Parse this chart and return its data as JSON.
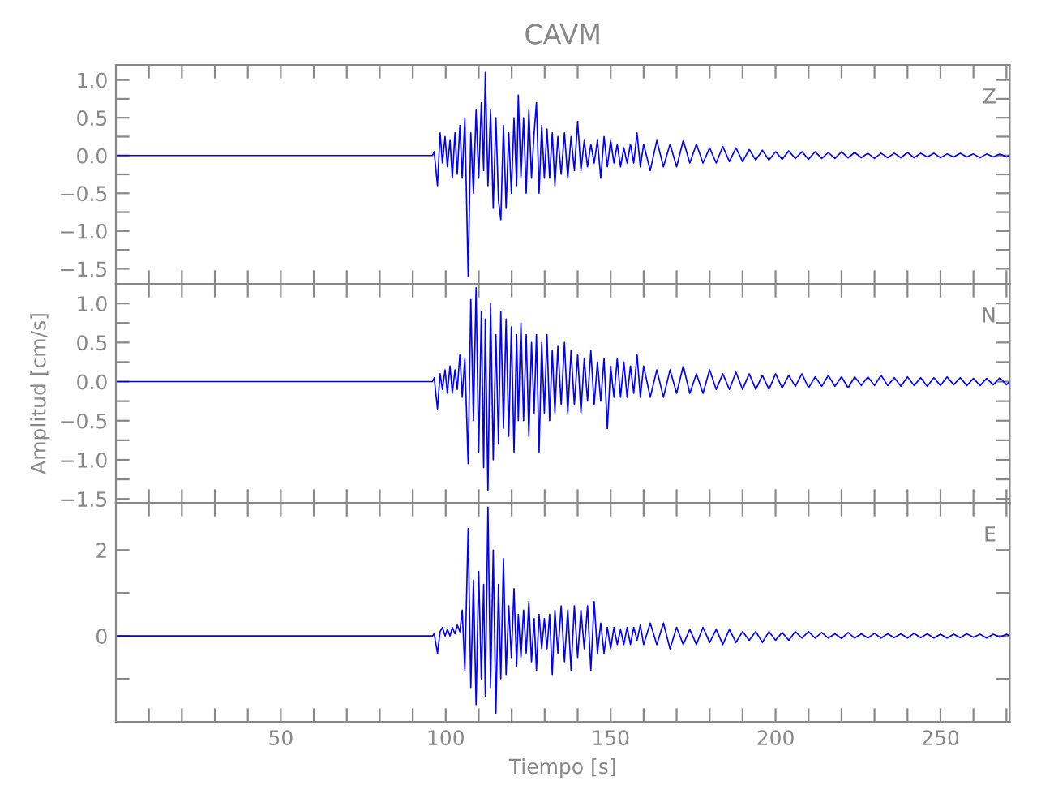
{
  "chart_data": [
    {
      "type": "line",
      "title": "CAVM",
      "annotations": [
        "Z"
      ],
      "tick_labels": "y",
      "grid": false,
      "legend": false,
      "x": [
        0,
        96,
        96.5,
        97.5,
        98.3,
        99,
        99.8,
        100.5,
        101.3,
        102,
        102.8,
        103.5,
        104.3,
        105,
        105.8,
        106.8,
        107.6,
        108.4,
        109.2,
        110,
        110.8,
        111.5,
        112,
        112.8,
        113.6,
        114.4,
        115.2,
        116,
        116.7,
        117.5,
        118.3,
        119.1,
        119.9,
        120.7,
        121.5,
        122,
        122.8,
        123.6,
        124.4,
        125.2,
        126,
        126.8,
        127.5,
        128.3,
        129.1,
        129.9,
        130.7,
        131.5,
        132.3,
        133.1,
        134,
        135,
        136,
        137,
        138,
        139,
        140,
        141,
        142,
        143,
        144,
        145,
        146,
        147,
        148,
        149,
        150,
        151,
        152,
        153,
        154,
        155,
        156,
        157,
        158,
        159,
        160,
        162,
        164,
        166,
        168,
        170,
        172,
        174,
        176,
        178,
        180,
        182,
        184,
        186,
        188,
        190,
        192,
        194,
        196,
        198,
        200,
        202,
        204,
        206,
        208,
        210,
        212,
        214,
        216,
        218,
        220,
        222,
        224,
        226,
        228,
        230,
        232,
        234,
        236,
        238,
        240,
        242,
        244,
        246,
        248,
        250,
        252,
        254,
        256,
        258,
        260,
        262,
        264,
        266,
        268,
        270,
        271
      ],
      "series": [
        {
          "color": "#0000ff",
          "values": [
            0,
            0,
            0.05,
            -0.4,
            0.3,
            -0.1,
            0.25,
            -0.15,
            0.2,
            -0.3,
            0.3,
            -0.25,
            0.4,
            -0.3,
            0.5,
            -1.6,
            0.3,
            -0.5,
            0.6,
            -0.3,
            0.7,
            -0.2,
            1.1,
            -0.4,
            0.6,
            -0.7,
            0.5,
            -0.6,
            -0.85,
            0.4,
            -0.7,
            0.3,
            -0.5,
            0.5,
            -0.4,
            0.8,
            -0.3,
            0.5,
            -0.5,
            0.6,
            -0.3,
            0.3,
            0.7,
            -0.5,
            0.4,
            -0.3,
            0.35,
            -0.3,
            0.3,
            -0.4,
            0.25,
            -0.25,
            0.3,
            -0.3,
            0.25,
            -0.2,
            0.45,
            -0.2,
            0.2,
            -0.15,
            0.15,
            -0.1,
            0.2,
            -0.3,
            0.25,
            -0.15,
            0.2,
            -0.1,
            0.15,
            -0.15,
            0.1,
            -0.1,
            0.15,
            -0.1,
            0.3,
            -0.15,
            0.15,
            -0.2,
            0.2,
            -0.15,
            0.15,
            -0.15,
            0.2,
            -0.1,
            0.15,
            -0.1,
            0.1,
            -0.1,
            0.12,
            -0.08,
            0.1,
            -0.08,
            0.08,
            -0.06,
            0.07,
            -0.06,
            0.05,
            -0.05,
            0.06,
            -0.04,
            0.05,
            -0.05,
            0.05,
            -0.04,
            0.04,
            -0.04,
            0.05,
            -0.03,
            0.04,
            -0.03,
            0.03,
            -0.04,
            0.03,
            -0.03,
            0.03,
            -0.03,
            0.04,
            -0.03,
            0.03,
            -0.02,
            0.03,
            -0.03,
            0.02,
            -0.02,
            0.03,
            -0.02,
            0.02,
            -0.03,
            0.02,
            -0.02,
            0.02,
            -0.02,
            0
          ]
        }
      ],
      "xlim": [
        0,
        271
      ],
      "ylim": [
        -1.7,
        1.2
      ],
      "xticks": [
        {
          "value": 10,
          "label": null
        },
        {
          "value": 20,
          "label": null
        },
        {
          "value": 30,
          "label": null
        },
        {
          "value": 40,
          "label": null
        },
        {
          "value": 50,
          "label": null
        },
        {
          "value": 60,
          "label": null
        },
        {
          "value": 70,
          "label": null
        },
        {
          "value": 80,
          "label": null
        },
        {
          "value": 90,
          "label": null
        },
        {
          "value": 100,
          "label": null
        },
        {
          "value": 110,
          "label": null
        },
        {
          "value": 120,
          "label": null
        },
        {
          "value": 130,
          "label": null
        },
        {
          "value": 140,
          "label": null
        },
        {
          "value": 150,
          "label": null
        },
        {
          "value": 160,
          "label": null
        },
        {
          "value": 170,
          "label": null
        },
        {
          "value": 180,
          "label": null
        },
        {
          "value": 190,
          "label": null
        },
        {
          "value": 200,
          "label": null
        },
        {
          "value": 210,
          "label": null
        },
        {
          "value": 220,
          "label": null
        },
        {
          "value": 230,
          "label": null
        },
        {
          "value": 240,
          "label": null
        },
        {
          "value": 250,
          "label": null
        },
        {
          "value": 260,
          "label": null
        },
        {
          "value": 270,
          "label": null
        }
      ],
      "yticks": [
        {
          "value": 1,
          "label": "1.0"
        },
        {
          "value": 0.75,
          "label": null
        },
        {
          "value": 0.5,
          "label": "0.5"
        },
        {
          "value": 0.25,
          "label": null
        },
        {
          "value": 0,
          "label": "0.0"
        },
        {
          "value": -0.25,
          "label": null
        },
        {
          "value": -0.5,
          "label": "−0.5"
        },
        {
          "value": -0.75,
          "label": null
        },
        {
          "value": -1,
          "label": "−1.0"
        },
        {
          "value": -1.25,
          "label": null
        },
        {
          "value": -1.5,
          "label": "−1.5"
        }
      ]
    },
    {
      "type": "line",
      "ylabel": "Amplitud [cm/s]",
      "annotations": [
        "N"
      ],
      "tick_labels": "y",
      "grid": false,
      "legend": false,
      "x": [
        0,
        96,
        96.5,
        97.5,
        98.3,
        99,
        99.8,
        100.5,
        101.3,
        102,
        102.8,
        103.5,
        104.3,
        105,
        105.8,
        106.8,
        107.6,
        108.4,
        109.2,
        110,
        110.8,
        111.5,
        112,
        112.8,
        113.6,
        114.4,
        115.2,
        116,
        116.7,
        117.5,
        118.3,
        119.1,
        119.9,
        120.7,
        121.5,
        122,
        122.8,
        123.6,
        124.4,
        125.2,
        126,
        126.8,
        127.5,
        128.3,
        129.1,
        129.9,
        130.7,
        131.5,
        132.3,
        133.1,
        134,
        135,
        136,
        137,
        138,
        139,
        140,
        141,
        142,
        143,
        144,
        145,
        146,
        147,
        148,
        149,
        150,
        151,
        152,
        153,
        154,
        155,
        156,
        157,
        158,
        159,
        160,
        162,
        164,
        166,
        168,
        170,
        172,
        174,
        176,
        178,
        180,
        182,
        184,
        186,
        188,
        190,
        192,
        194,
        196,
        198,
        200,
        202,
        204,
        206,
        208,
        210,
        212,
        214,
        216,
        218,
        220,
        222,
        224,
        226,
        228,
        230,
        232,
        234,
        236,
        238,
        240,
        242,
        244,
        246,
        248,
        250,
        252,
        254,
        256,
        258,
        260,
        262,
        264,
        266,
        268,
        270,
        271
      ],
      "series": [
        {
          "color": "#0000ff",
          "values": [
            0,
            0,
            0.05,
            -0.35,
            0.1,
            -0.1,
            0.15,
            -0.15,
            0.2,
            -0.15,
            0.15,
            -0.1,
            0.35,
            -0.2,
            0.3,
            -1.05,
            1.05,
            -0.5,
            1.2,
            -0.9,
            0.9,
            -1.1,
            0.8,
            -1.4,
            1.0,
            -1.0,
            0.6,
            -0.8,
            0.9,
            -0.6,
            0.8,
            -0.7,
            0.7,
            -0.9,
            0.6,
            -0.5,
            0.75,
            -0.5,
            0.6,
            -0.7,
            0.5,
            -0.4,
            0.6,
            -0.9,
            0.5,
            -0.4,
            0.6,
            -0.5,
            0.4,
            -0.4,
            0.45,
            -0.3,
            0.5,
            -0.4,
            0.4,
            -0.3,
            0.35,
            -0.4,
            0.3,
            -0.25,
            0.4,
            -0.3,
            0.25,
            -0.25,
            0.3,
            -0.6,
            0.2,
            -0.2,
            0.3,
            -0.2,
            0.25,
            -0.2,
            0.2,
            -0.15,
            0.35,
            -0.2,
            0.2,
            -0.2,
            0.15,
            -0.2,
            0.15,
            -0.15,
            0.2,
            -0.15,
            0.1,
            -0.15,
            0.15,
            -0.1,
            0.1,
            -0.1,
            0.12,
            -0.1,
            0.1,
            -0.1,
            0.08,
            -0.1,
            0.1,
            -0.08,
            0.08,
            -0.06,
            0.1,
            -0.08,
            0.06,
            -0.06,
            0.08,
            -0.06,
            0.06,
            -0.08,
            0.06,
            -0.05,
            0.06,
            -0.05,
            0.08,
            -0.05,
            0.05,
            -0.06,
            0.06,
            -0.05,
            0.05,
            -0.06,
            0.05,
            -0.05,
            0.06,
            -0.04,
            0.05,
            -0.05,
            0.04,
            -0.05,
            0.04,
            -0.04,
            0.05,
            -0.04,
            0
          ]
        }
      ],
      "xlim": [
        0,
        271
      ],
      "ylim": [
        -1.55,
        1.25
      ],
      "xticks": [
        {
          "value": 10,
          "label": null
        },
        {
          "value": 20,
          "label": null
        },
        {
          "value": 30,
          "label": null
        },
        {
          "value": 40,
          "label": null
        },
        {
          "value": 50,
          "label": null
        },
        {
          "value": 60,
          "label": null
        },
        {
          "value": 70,
          "label": null
        },
        {
          "value": 80,
          "label": null
        },
        {
          "value": 90,
          "label": null
        },
        {
          "value": 100,
          "label": null
        },
        {
          "value": 110,
          "label": null
        },
        {
          "value": 120,
          "label": null
        },
        {
          "value": 130,
          "label": null
        },
        {
          "value": 140,
          "label": null
        },
        {
          "value": 150,
          "label": null
        },
        {
          "value": 160,
          "label": null
        },
        {
          "value": 170,
          "label": null
        },
        {
          "value": 180,
          "label": null
        },
        {
          "value": 190,
          "label": null
        },
        {
          "value": 200,
          "label": null
        },
        {
          "value": 210,
          "label": null
        },
        {
          "value": 220,
          "label": null
        },
        {
          "value": 230,
          "label": null
        },
        {
          "value": 240,
          "label": null
        },
        {
          "value": 250,
          "label": null
        },
        {
          "value": 260,
          "label": null
        },
        {
          "value": 270,
          "label": null
        }
      ],
      "yticks": [
        {
          "value": 1,
          "label": "1.0"
        },
        {
          "value": 0.75,
          "label": null
        },
        {
          "value": 0.5,
          "label": "0.5"
        },
        {
          "value": 0.25,
          "label": null
        },
        {
          "value": 0,
          "label": "0.0"
        },
        {
          "value": -0.25,
          "label": null
        },
        {
          "value": -0.5,
          "label": "−0.5"
        },
        {
          "value": -0.75,
          "label": null
        },
        {
          "value": -1,
          "label": "−1.0"
        },
        {
          "value": -1.25,
          "label": null
        },
        {
          "value": -1.5,
          "label": "−1.5"
        }
      ]
    },
    {
      "type": "line",
      "xlabel": "Tiempo [s]",
      "annotations": [
        "E"
      ],
      "grid": false,
      "legend": false,
      "x": [
        0,
        96,
        96.5,
        97.5,
        98.3,
        99,
        99.8,
        100.5,
        101.3,
        102,
        102.8,
        103.5,
        104.3,
        105,
        105.8,
        106.8,
        107.6,
        108.4,
        109.2,
        110,
        110.8,
        111.5,
        112,
        112.8,
        113.6,
        114.4,
        115.2,
        116,
        116.7,
        117.5,
        118.3,
        119.1,
        119.9,
        120.7,
        121.5,
        122,
        122.8,
        123.6,
        124.4,
        125.2,
        126,
        126.8,
        127.5,
        128.3,
        129.1,
        129.9,
        130.7,
        131.5,
        132.3,
        133.1,
        134,
        135,
        136,
        137,
        138,
        139,
        140,
        141,
        142,
        143,
        144,
        145,
        146,
        147,
        148,
        149,
        150,
        151,
        152,
        153,
        154,
        155,
        156,
        157,
        158,
        159,
        160,
        162,
        164,
        166,
        168,
        170,
        172,
        174,
        176,
        178,
        180,
        182,
        184,
        186,
        188,
        190,
        192,
        194,
        196,
        198,
        200,
        202,
        204,
        206,
        208,
        210,
        212,
        214,
        216,
        218,
        220,
        222,
        224,
        226,
        228,
        230,
        232,
        234,
        236,
        238,
        240,
        242,
        244,
        246,
        248,
        250,
        252,
        254,
        256,
        258,
        260,
        262,
        264,
        266,
        268,
        270,
        271
      ],
      "series": [
        {
          "color": "#0000ff",
          "values": [
            0,
            0,
            0.05,
            -0.4,
            0.1,
            0.2,
            0.0,
            0.15,
            0.0,
            0.2,
            0.05,
            0.25,
            0.1,
            0.6,
            -0.8,
            2.5,
            -1.2,
            1.3,
            -1.6,
            1.5,
            -1.0,
            1.2,
            -1.4,
            3.0,
            -1.2,
            2.0,
            -1.8,
            1.2,
            -1.0,
            1.8,
            -0.9,
            0.7,
            -0.5,
            1.1,
            -0.7,
            0.5,
            -0.5,
            0.6,
            -0.4,
            0.8,
            -0.6,
            0.4,
            -0.8,
            0.5,
            -0.3,
            0.4,
            -0.3,
            0.5,
            -0.9,
            0.6,
            -0.4,
            0.7,
            -0.6,
            0.6,
            -0.8,
            0.7,
            -0.5,
            0.6,
            -0.3,
            0.7,
            -0.8,
            0.8,
            -0.4,
            0.3,
            -0.4,
            0.2,
            -0.3,
            0.2,
            -0.2,
            0.15,
            -0.2,
            0.2,
            -0.2,
            0.2,
            -0.1,
            0.25,
            -0.2,
            0.3,
            -0.2,
            0.3,
            -0.3,
            0.2,
            -0.2,
            0.15,
            -0.2,
            0.2,
            -0.15,
            0.15,
            -0.2,
            0.15,
            -0.15,
            0.1,
            -0.1,
            0.1,
            -0.15,
            0.1,
            -0.1,
            0.08,
            -0.1,
            0.1,
            -0.05,
            0.1,
            -0.05,
            0.08,
            -0.05,
            0.05,
            -0.06,
            0.08,
            -0.05,
            0.05,
            -0.05,
            0.06,
            -0.05,
            0.05,
            -0.04,
            0.05,
            -0.05,
            0.06,
            -0.04,
            0.05,
            -0.05,
            0.04,
            -0.05,
            0.04,
            -0.04,
            0.05,
            -0.03,
            0.04,
            -0.05,
            0.04,
            -0.03,
            0.04,
            0
          ]
        }
      ],
      "xlim": [
        0,
        271
      ],
      "ylim": [
        -2,
        3.1
      ],
      "xticks": [
        {
          "value": 10,
          "label": null
        },
        {
          "value": 20,
          "label": null
        },
        {
          "value": 30,
          "label": null
        },
        {
          "value": 40,
          "label": null
        },
        50,
        {
          "value": 60,
          "label": null
        },
        {
          "value": 70,
          "label": null
        },
        {
          "value": 80,
          "label": null
        },
        {
          "value": 90,
          "label": null
        },
        100,
        {
          "value": 110,
          "label": null
        },
        {
          "value": 120,
          "label": null
        },
        {
          "value": 130,
          "label": null
        },
        {
          "value": 140,
          "label": null
        },
        150,
        {
          "value": 160,
          "label": null
        },
        {
          "value": 170,
          "label": null
        },
        {
          "value": 180,
          "label": null
        },
        {
          "value": 190,
          "label": null
        },
        200,
        {
          "value": 210,
          "label": null
        },
        {
          "value": 220,
          "label": null
        },
        {
          "value": 230,
          "label": null
        },
        {
          "value": 240,
          "label": null
        },
        250,
        {
          "value": 260,
          "label": null
        },
        {
          "value": 270,
          "label": null
        }
      ],
      "yticks": [
        {
          "value": 2,
          "label": "2"
        },
        {
          "value": 1,
          "label": null
        },
        {
          "value": 0,
          "label": "0"
        },
        {
          "value": -1,
          "label": null
        }
      ]
    }
  ]
}
